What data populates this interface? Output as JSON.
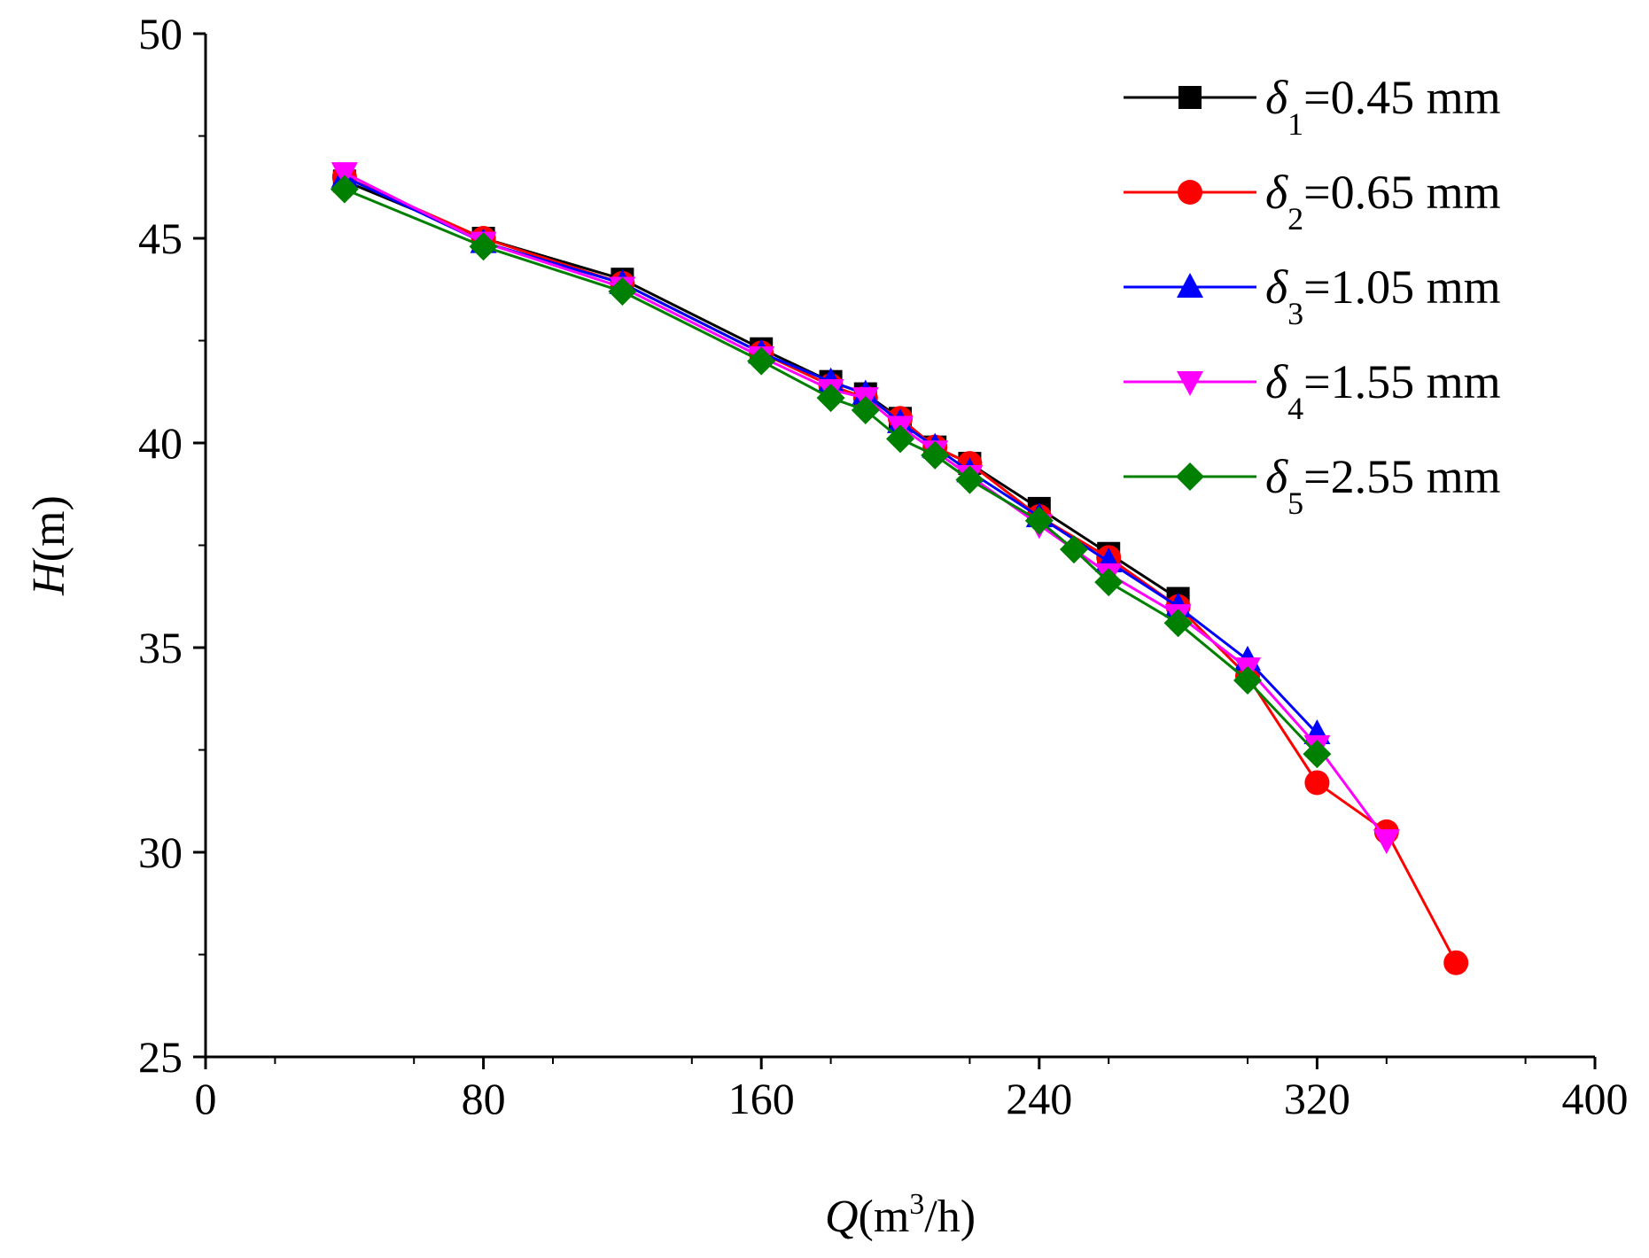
{
  "chart_data": {
    "type": "line",
    "title": "",
    "xlabel": {
      "var": "Q",
      "unit_open": "(m",
      "unit_sup": "3",
      "unit_close": "/h)"
    },
    "ylabel": {
      "var": "H",
      "unit": "(m)"
    },
    "xlim": [
      0,
      400
    ],
    "ylim": [
      25,
      50
    ],
    "xticks": [
      0,
      80,
      160,
      240,
      320,
      400
    ],
    "yticks": [
      25,
      30,
      35,
      40,
      45,
      50
    ],
    "grid": false,
    "legend_position": "top-right",
    "series": [
      {
        "name": "δ1=0.45 mm",
        "symbol": "δ",
        "sub": "1",
        "value_text": "=0.45  mm",
        "color": "#000000",
        "marker": "square",
        "x": [
          40,
          80,
          120,
          160,
          180,
          190,
          200,
          210,
          220,
          240,
          260,
          280
        ],
        "y": [
          46.4,
          45.0,
          44.0,
          42.3,
          41.5,
          41.2,
          40.6,
          39.9,
          39.5,
          38.4,
          37.3,
          36.2
        ]
      },
      {
        "name": "δ2=0.65 mm",
        "symbol": "δ",
        "sub": "2",
        "value_text": "=0.65  mm",
        "color": "#ff0000",
        "marker": "circle",
        "x": [
          40,
          80,
          120,
          160,
          180,
          190,
          200,
          210,
          220,
          240,
          260,
          280,
          300,
          320,
          340,
          360
        ],
        "y": [
          46.5,
          45.0,
          43.9,
          42.2,
          41.4,
          41.1,
          40.6,
          39.9,
          39.5,
          38.2,
          37.2,
          36.0,
          34.3,
          31.7,
          30.5,
          27.3
        ]
      },
      {
        "name": "δ3=1.05 mm",
        "symbol": "δ",
        "sub": "3",
        "value_text": "=1.05  mm",
        "color": "#0000ff",
        "marker": "triangle-up",
        "x": [
          40,
          80,
          120,
          160,
          180,
          190,
          200,
          210,
          220,
          240,
          260,
          280,
          300,
          320
        ],
        "y": [
          46.5,
          44.9,
          43.9,
          42.2,
          41.5,
          41.2,
          40.5,
          39.9,
          39.3,
          38.2,
          37.1,
          36.0,
          34.7,
          32.9
        ]
      },
      {
        "name": "δ4=1.55 mm",
        "symbol": "δ",
        "sub": "4",
        "value_text": "=1.55  mm",
        "color": "#ff00ff",
        "marker": "triangle-down",
        "x": [
          40,
          80,
          120,
          160,
          180,
          190,
          200,
          210,
          220,
          240,
          260,
          280,
          300,
          320,
          340
        ],
        "y": [
          46.6,
          44.9,
          43.8,
          42.1,
          41.3,
          41.1,
          40.4,
          39.8,
          39.2,
          38.0,
          36.8,
          35.8,
          34.5,
          32.6,
          30.3
        ]
      },
      {
        "name": "δ5=2.55 mm",
        "symbol": "δ",
        "sub": "5",
        "value_text": "=2.55  mm",
        "color": "#008000",
        "marker": "diamond",
        "x": [
          40,
          80,
          120,
          160,
          180,
          190,
          200,
          210,
          220,
          240,
          250,
          260,
          280,
          300,
          320
        ],
        "y": [
          46.2,
          44.8,
          43.7,
          42.0,
          41.1,
          40.8,
          40.1,
          39.7,
          39.1,
          38.1,
          37.4,
          36.6,
          35.6,
          34.2,
          32.4
        ]
      }
    ]
  }
}
